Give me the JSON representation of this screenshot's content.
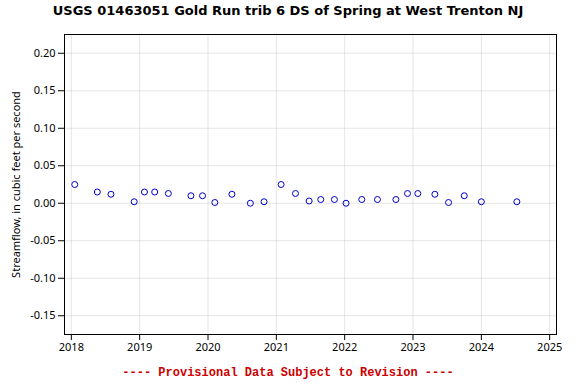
{
  "chart_data": {
    "type": "scatter",
    "title": "USGS 01463051 Gold Run trib 6 DS of Spring at West Trenton NJ",
    "ylabel": "Streamflow, in cubic feet per second",
    "x": [
      2018.05,
      2018.38,
      2018.58,
      2018.92,
      2019.07,
      2019.22,
      2019.42,
      2019.75,
      2019.92,
      2020.1,
      2020.35,
      2020.62,
      2020.82,
      2021.07,
      2021.28,
      2021.48,
      2021.65,
      2021.85,
      2022.02,
      2022.25,
      2022.48,
      2022.75,
      2022.92,
      2023.07,
      2023.32,
      2023.52,
      2023.75,
      2024.0,
      2024.52
    ],
    "values": [
      0.025,
      0.015,
      0.012,
      0.002,
      0.015,
      0.015,
      0.013,
      0.01,
      0.01,
      0.001,
      0.012,
      0.0,
      0.002,
      0.025,
      0.013,
      0.003,
      0.005,
      0.005,
      0.0,
      0.005,
      0.005,
      0.005,
      0.013,
      0.013,
      0.012,
      0.001,
      0.01,
      0.002,
      0.002
    ],
    "color": "#0000cc",
    "marker": "open_circle",
    "xlim": [
      2017.9,
      2025.1
    ],
    "ylim": [
      -0.175,
      0.225
    ],
    "xticks": [
      2018,
      2019,
      2020,
      2021,
      2022,
      2023,
      2024,
      2025
    ],
    "yticks": [
      -0.15,
      {
        "value": -0.1,
        "label": "-0.10"
      },
      -0.05,
      {
        "value": 0,
        "label": "0.00"
      },
      0.05,
      {
        "value": 0.1,
        "label": "0.10"
      },
      0.15,
      {
        "value": 0.2,
        "label": "0.20"
      }
    ],
    "grid": true,
    "annotations": [
      {
        "text": "---- Provisional Data Subject to Revision ----",
        "color": "#cc0000"
      }
    ]
  }
}
